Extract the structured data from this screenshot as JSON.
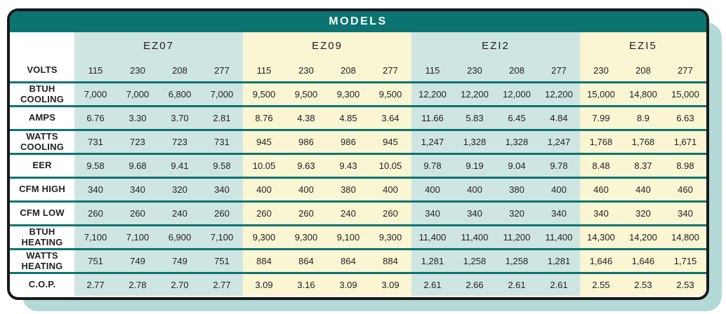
{
  "title": "MODELS",
  "colors": {
    "header_teal": "#0b7471",
    "group_teal_bg": "#cfe5e2",
    "group_yellow_bg": "#faf5d3",
    "shadow_teal": "#b2d9d5",
    "border_black": "#191919",
    "title_text": "#ffffff"
  },
  "table": {
    "volts_label": "VOLTS",
    "groups": [
      {
        "name": "EZ07",
        "volts": [
          "115",
          "230",
          "208",
          "277"
        ]
      },
      {
        "name": "EZ09",
        "volts": [
          "115",
          "230",
          "208",
          "277"
        ]
      },
      {
        "name": "EZI2",
        "volts": [
          "115",
          "230",
          "208",
          "277"
        ]
      },
      {
        "name": "EZI5",
        "volts": [
          "230",
          "208",
          "277"
        ]
      }
    ],
    "rows": [
      {
        "label_lines": [
          "BTUH",
          "COOLING"
        ],
        "values": [
          "7,000",
          "7,000",
          "6,800",
          "7,000",
          "9,500",
          "9,500",
          "9,300",
          "9,500",
          "12,200",
          "12,200",
          "12,000",
          "12,200",
          "15,000",
          "14,800",
          "15,000"
        ]
      },
      {
        "label_lines": [
          "AMPS"
        ],
        "values": [
          "6.76",
          "3.30",
          "3.70",
          "2.81",
          "8.76",
          "4.38",
          "4.85",
          "3.64",
          "11.66",
          "5.83",
          "6.45",
          "4.84",
          "7.99",
          "8.9",
          "6.63"
        ]
      },
      {
        "label_lines": [
          "WATTS",
          "COOLING"
        ],
        "values": [
          "731",
          "723",
          "723",
          "731",
          "945",
          "986",
          "986",
          "945",
          "1,247",
          "1,328",
          "1,328",
          "1,247",
          "1,768",
          "1,768",
          "1,671"
        ]
      },
      {
        "label_lines": [
          "EER"
        ],
        "values": [
          "9.58",
          "9.68",
          "9.41",
          "9.58",
          "10.05",
          "9.63",
          "9.43",
          "10.05",
          "9.78",
          "9.19",
          "9.04",
          "9.78",
          "8.48",
          "8.37",
          "8.98"
        ]
      },
      {
        "label_lines": [
          "CFM HIGH"
        ],
        "values": [
          "340",
          "340",
          "320",
          "340",
          "400",
          "400",
          "380",
          "400",
          "400",
          "400",
          "380",
          "400",
          "460",
          "440",
          "460"
        ]
      },
      {
        "label_lines": [
          "CFM LOW"
        ],
        "values": [
          "260",
          "260",
          "240",
          "260",
          "260",
          "260",
          "240",
          "260",
          "340",
          "340",
          "320",
          "340",
          "340",
          "320",
          "340"
        ]
      },
      {
        "label_lines": [
          "BTUH",
          "HEATING"
        ],
        "values": [
          "7,100",
          "7,100",
          "6,900",
          "7,100",
          "9,300",
          "9,300",
          "9,100",
          "9,300",
          "11,400",
          "11,400",
          "11,200",
          "11,400",
          "14,300",
          "14,200",
          "14,800"
        ]
      },
      {
        "label_lines": [
          "WATTS",
          "HEATING"
        ],
        "values": [
          "751",
          "749",
          "749",
          "751",
          "884",
          "864",
          "864",
          "884",
          "1,281",
          "1,258",
          "1,258",
          "1,281",
          "1,646",
          "1,646",
          "1,715"
        ]
      },
      {
        "label_lines": [
          "C.O.P."
        ],
        "values": [
          "2.77",
          "2.78",
          "2.70",
          "2.77",
          "3.09",
          "3.16",
          "3.09",
          "3.09",
          "2.61",
          "2.66",
          "2.61",
          "2.61",
          "2.55",
          "2.53",
          "2.53"
        ]
      }
    ]
  }
}
